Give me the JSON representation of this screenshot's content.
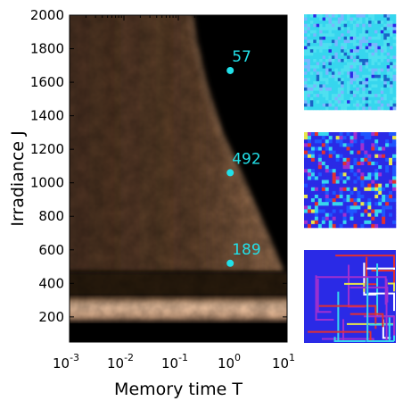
{
  "chart_data": [
    {
      "type": "heatmap",
      "title": "",
      "xlabel": "Memory time T",
      "ylabel": "Irradiance J",
      "x_scale": "log",
      "xlim": [
        0.001,
        10
      ],
      "ylim": [
        50,
        2000
      ],
      "x_ticks": [
        0.001,
        0.01,
        0.1,
        1,
        10
      ],
      "x_tick_labels": [
        {
          "base": "10",
          "exp": "-3"
        },
        {
          "base": "10",
          "exp": "-2"
        },
        {
          "base": "10",
          "exp": "-1"
        },
        {
          "base": "10",
          "exp": "0"
        },
        {
          "base": "10",
          "exp": "1"
        }
      ],
      "y_ticks": [
        200,
        400,
        600,
        800,
        1000,
        1200,
        1400,
        1600,
        1800,
        2000
      ],
      "y_tick_labels": [
        "200",
        "400",
        "600",
        "800",
        "1000",
        "1200",
        "1400",
        "1600",
        "1800",
        "2000"
      ],
      "colormap": [
        "#000000",
        "#3a2414",
        "#7a5636",
        "#c49270",
        "#f0c8a6"
      ],
      "bright_band": {
        "y_range": [
          170,
          320
        ],
        "level": 0.95
      },
      "dark_band": {
        "y_range": [
          320,
          470
        ],
        "level": 0.1
      },
      "boundary": [
        {
          "J": 470,
          "T": 8
        },
        {
          "J": 700,
          "T": 4
        },
        {
          "J": 1000,
          "T": 1.6
        },
        {
          "J": 1300,
          "T": 0.6
        },
        {
          "J": 1600,
          "T": 0.3
        },
        {
          "J": 1850,
          "T": 0.2
        },
        {
          "J": 2000,
          "T": 0.17
        }
      ],
      "markers": [
        {
          "label": "57",
          "T": 0.9,
          "J": 1670,
          "color": "#22e0e8"
        },
        {
          "label": "492",
          "T": 0.9,
          "J": 1060,
          "color": "#22e0e8"
        },
        {
          "label": "189",
          "T": 0.9,
          "J": 520,
          "color": "#22e0e8"
        }
      ],
      "grid": false,
      "legend": "none"
    }
  ],
  "snapshots": [
    {
      "name": "snapshot-57",
      "pattern": "noise",
      "colors": [
        "#36d6ee",
        "#4fe0f0",
        "#1a64c8",
        "#2a2ae6",
        "#7ab6ff"
      ]
    },
    {
      "name": "snapshot-492",
      "pattern": "clusters",
      "colors": [
        "#2a2ae6",
        "#1f56ff",
        "#36d6ee",
        "#e8e84a",
        "#e23030",
        "#a030d0"
      ]
    },
    {
      "name": "snapshot-189",
      "pattern": "lines",
      "colors": [
        "#36d6ee",
        "#e23030",
        "#e8e84a",
        "#ffffff",
        "#a030d0"
      ]
    }
  ]
}
